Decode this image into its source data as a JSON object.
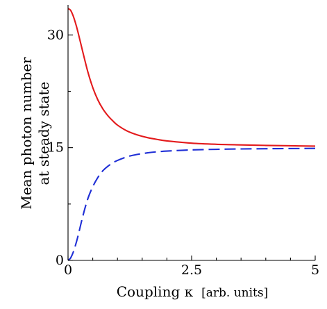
{
  "chart_data": {
    "type": "line",
    "title": "",
    "xlabel_main": "Coupling κ",
    "xlabel_units": "[arb. units]",
    "ylabel_lines": [
      "Mean photon number",
      "at steady state"
    ],
    "xlim": [
      0,
      5
    ],
    "ylim": [
      0,
      34
    ],
    "x_ticks": [
      {
        "value": 0,
        "label": "0"
      },
      {
        "value": 2.5,
        "label": "2.5"
      },
      {
        "value": 5,
        "label": "5"
      }
    ],
    "y_ticks": [
      {
        "value": 0,
        "label": "0"
      },
      {
        "value": 15,
        "label": "15"
      },
      {
        "value": 30,
        "label": "30"
      }
    ],
    "x_minor_ticks": [
      0.5,
      1,
      1.5,
      2,
      3,
      3.5,
      4,
      4.5
    ],
    "y_minor_ticks": [
      7.5,
      22.5
    ],
    "grid": false,
    "series": [
      {
        "style": "solid",
        "color": "#e31a1c",
        "x": [
          0,
          0.05,
          0.1,
          0.15,
          0.2,
          0.3,
          0.4,
          0.5,
          0.6,
          0.7,
          0.8,
          0.9,
          1.0,
          1.2,
          1.4,
          1.6,
          1.8,
          2.0,
          2.5,
          3.0,
          3.5,
          4.0,
          4.5,
          5.0
        ],
        "y": [
          33.5,
          33.3,
          32.6,
          31.6,
          30.4,
          27.7,
          25.1,
          23.0,
          21.4,
          20.2,
          19.3,
          18.6,
          18.0,
          17.2,
          16.7,
          16.35,
          16.1,
          15.9,
          15.6,
          15.45,
          15.37,
          15.3,
          15.25,
          15.2
        ]
      },
      {
        "style": "dashed",
        "color": "#1f2fd6",
        "x": [
          0,
          0.05,
          0.1,
          0.15,
          0.2,
          0.3,
          0.4,
          0.5,
          0.6,
          0.7,
          0.8,
          0.9,
          1.0,
          1.2,
          1.4,
          1.6,
          1.8,
          2.0,
          2.5,
          3.0,
          3.5,
          4.0,
          4.5,
          5.0
        ],
        "y": [
          0,
          0.3,
          1.0,
          2.0,
          3.2,
          5.9,
          8.2,
          9.8,
          11.0,
          11.9,
          12.5,
          12.95,
          13.3,
          13.8,
          14.1,
          14.3,
          14.45,
          14.55,
          14.7,
          14.78,
          14.83,
          14.86,
          14.88,
          14.9
        ]
      }
    ]
  }
}
